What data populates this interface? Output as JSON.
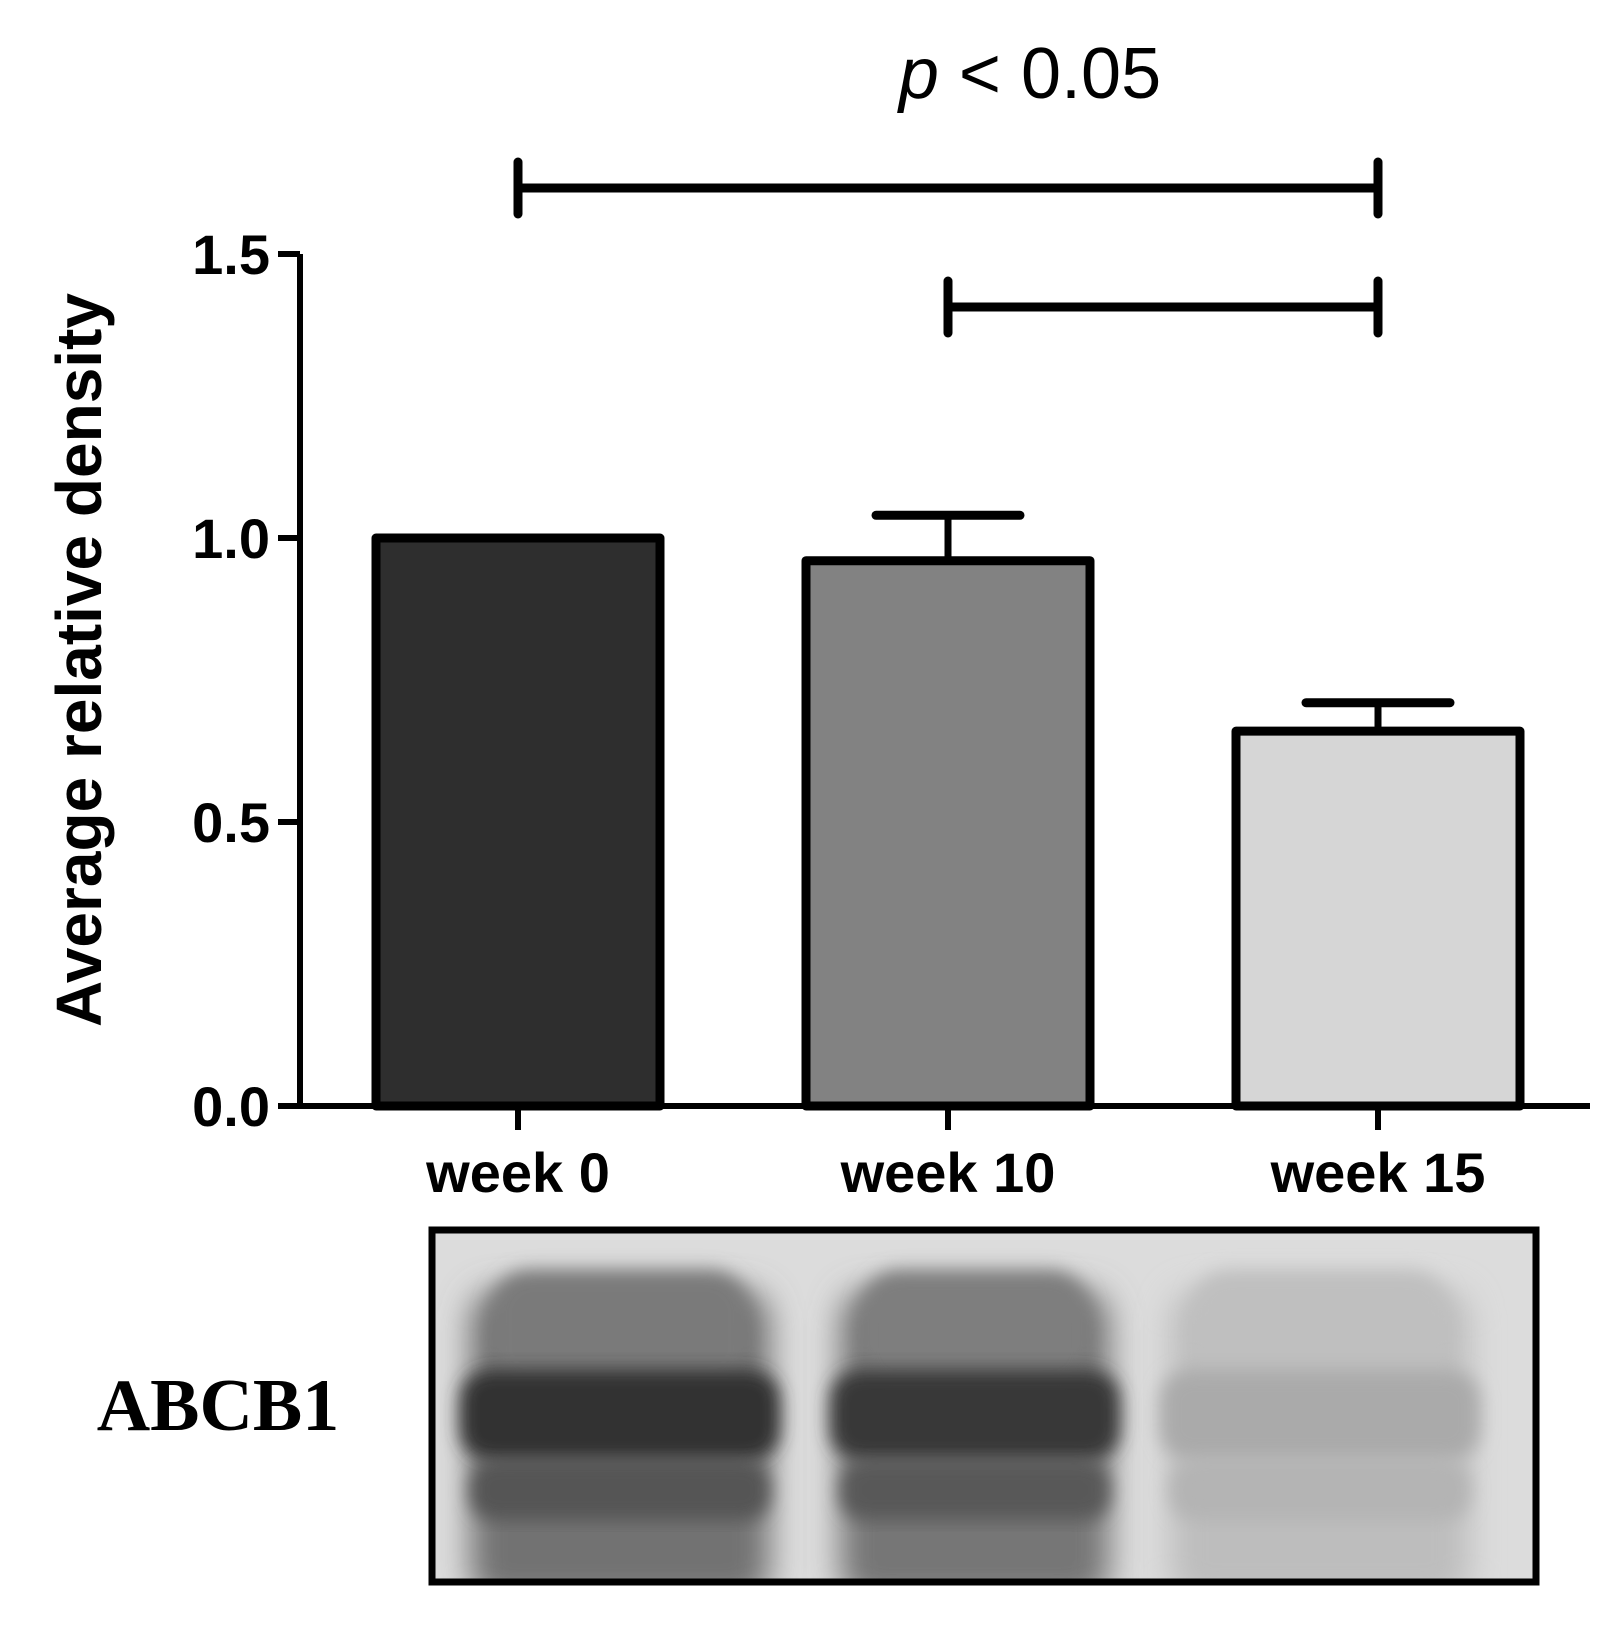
{
  "chart_data": {
    "type": "bar",
    "categories": [
      "week 0",
      "week 10",
      "week 15"
    ],
    "values": [
      1.0,
      0.96,
      0.66
    ],
    "errors": [
      0,
      0.08,
      0.05
    ],
    "colors": [
      "#2e2e2e",
      "#828282",
      "#d6d6d6"
    ],
    "ylabel": "Average relative density",
    "ylim": [
      0,
      1.5
    ],
    "yticks": [
      "0.0",
      "0.5",
      "1.0",
      "1.5"
    ],
    "significance": {
      "text_prefix": "p",
      "text_suffix": " < 0.05",
      "brackets": [
        {
          "from": "week 0",
          "to": "week 15"
        },
        {
          "from": "week 10",
          "to": "week 15"
        }
      ]
    }
  },
  "blot": {
    "label": "ABCB1",
    "lanes": [
      {
        "category": "week 0",
        "intensity": 0.85
      },
      {
        "category": "week 10",
        "intensity": 0.82
      },
      {
        "category": "week 15",
        "intensity": 0.25
      }
    ]
  }
}
